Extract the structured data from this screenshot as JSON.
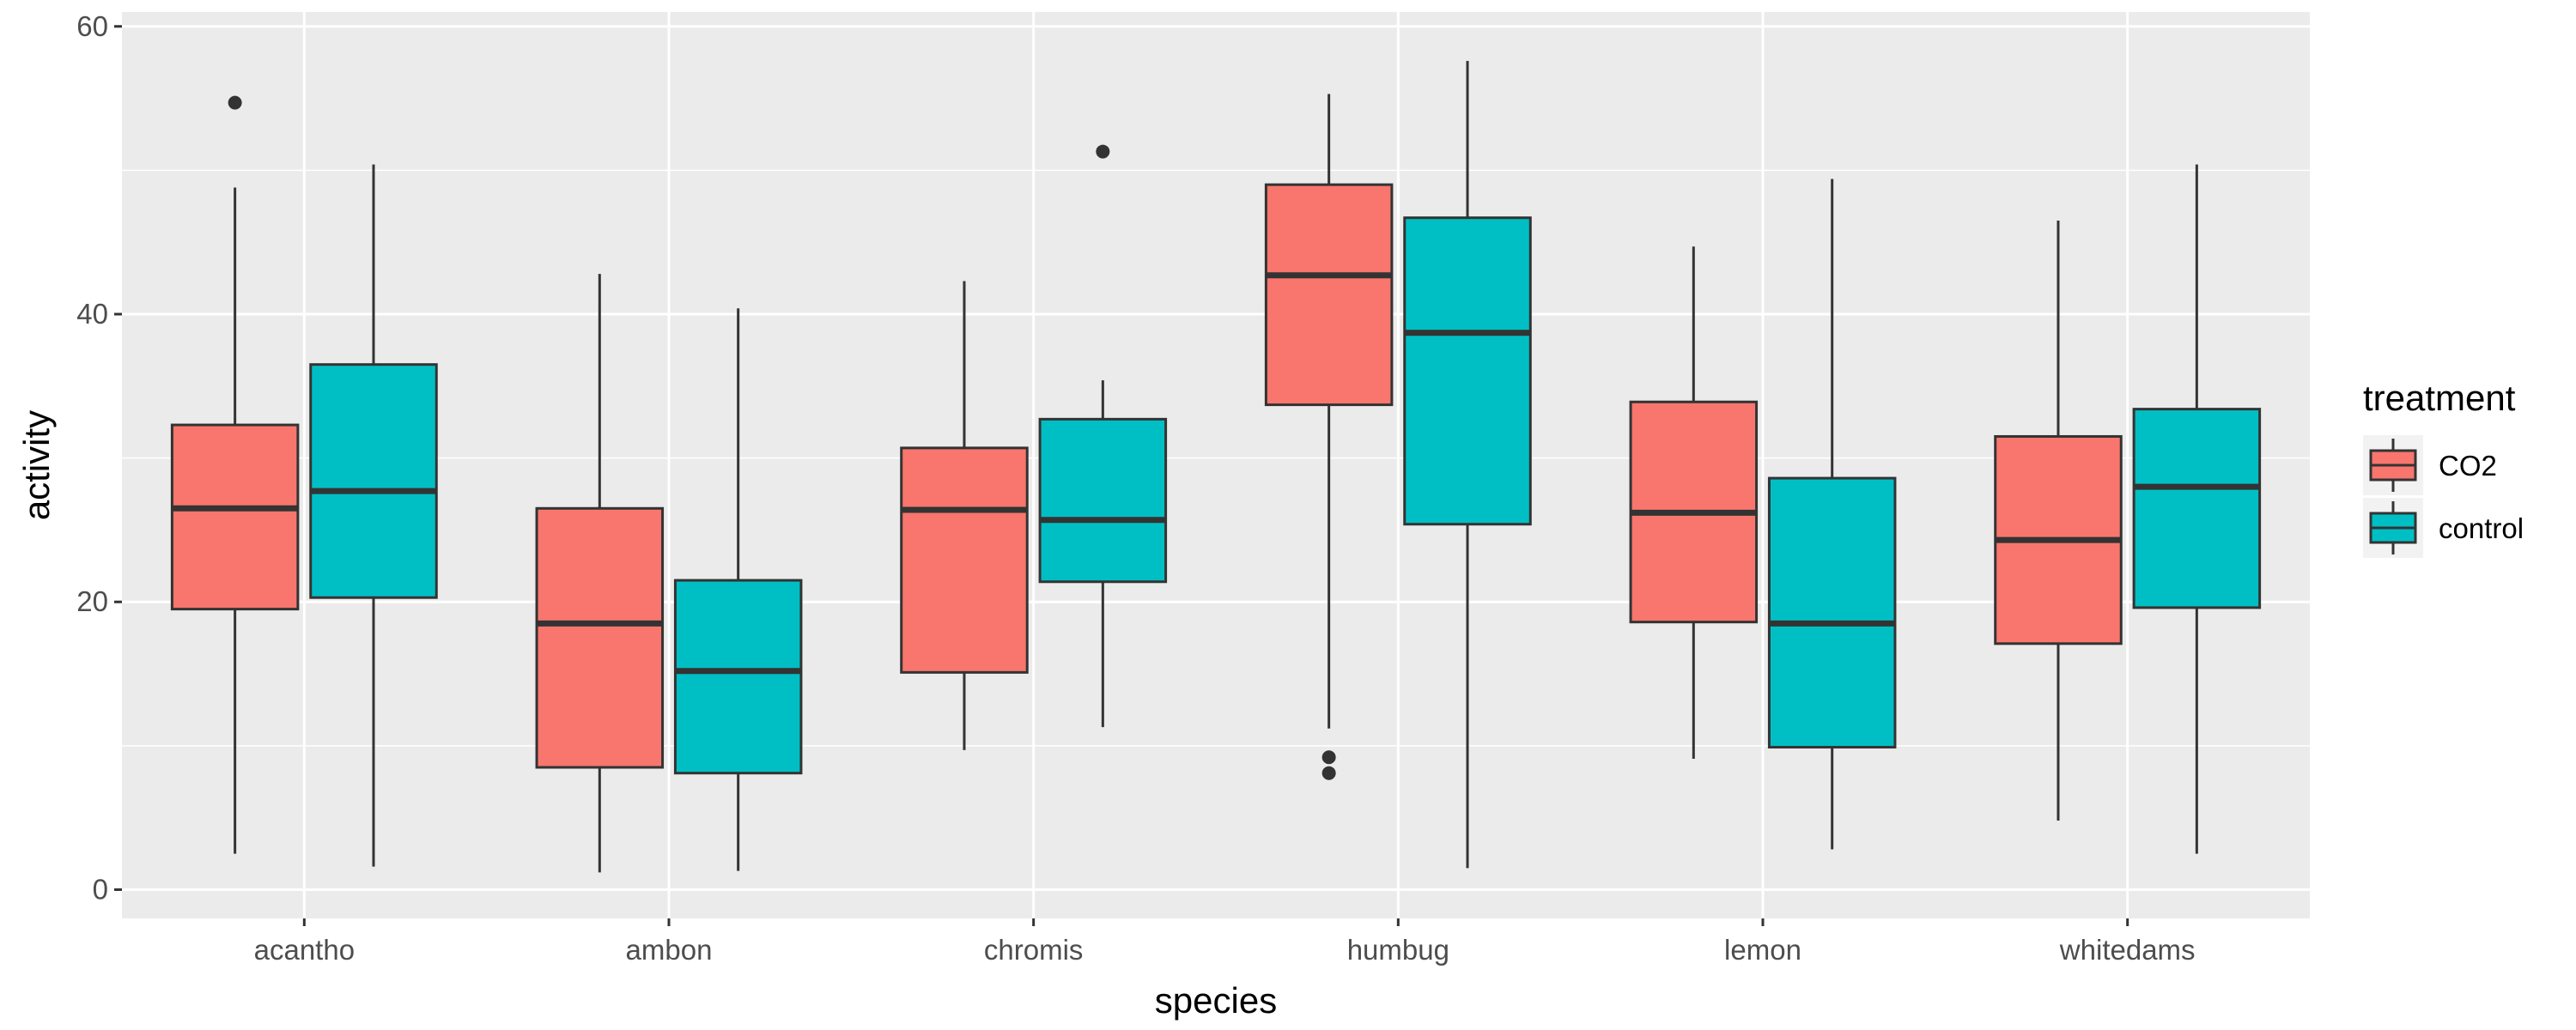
{
  "chart_data": {
    "type": "boxplot",
    "title": "",
    "xlabel": "species",
    "ylabel": "activity",
    "ylim": [
      -2,
      61
    ],
    "yticks": [
      0,
      20,
      40,
      60
    ],
    "grid": true,
    "legend": {
      "title": "treatment",
      "position": "right"
    },
    "categories": [
      "acantho",
      "ambon",
      "chromis",
      "humbug",
      "lemon",
      "whitedams"
    ],
    "series": [
      {
        "name": "CO2",
        "color": "#F8766D",
        "boxes": [
          {
            "whisker_low": 2.5,
            "q1": 19.5,
            "median": 26.5,
            "q3": 32.3,
            "whisker_high": 48.8,
            "outliers": [
              54.7
            ]
          },
          {
            "whisker_low": 1.2,
            "q1": 8.5,
            "median": 18.5,
            "q3": 26.5,
            "whisker_high": 42.8,
            "outliers": []
          },
          {
            "whisker_low": 9.7,
            "q1": 15.1,
            "median": 26.4,
            "q3": 30.7,
            "whisker_high": 42.3,
            "outliers": []
          },
          {
            "whisker_low": 11.2,
            "q1": 33.7,
            "median": 42.7,
            "q3": 49.0,
            "whisker_high": 55.3,
            "outliers": [
              9.2,
              8.1
            ]
          },
          {
            "whisker_low": 9.1,
            "q1": 18.6,
            "median": 26.2,
            "q3": 33.9,
            "whisker_high": 44.7,
            "outliers": []
          },
          {
            "whisker_low": 4.8,
            "q1": 17.1,
            "median": 24.3,
            "q3": 31.5,
            "whisker_high": 46.5,
            "outliers": []
          }
        ]
      },
      {
        "name": "control",
        "color": "#00BFC4",
        "boxes": [
          {
            "whisker_low": 1.6,
            "q1": 20.3,
            "median": 27.7,
            "q3": 36.5,
            "whisker_high": 50.4,
            "outliers": []
          },
          {
            "whisker_low": 1.3,
            "q1": 8.1,
            "median": 15.2,
            "q3": 21.5,
            "whisker_high": 40.4,
            "outliers": []
          },
          {
            "whisker_low": 11.3,
            "q1": 21.4,
            "median": 25.7,
            "q3": 32.7,
            "whisker_high": 35.4,
            "outliers": [
              51.3
            ]
          },
          {
            "whisker_low": 1.5,
            "q1": 25.4,
            "median": 38.7,
            "q3": 46.7,
            "whisker_high": 57.6,
            "outliers": []
          },
          {
            "whisker_low": 2.8,
            "q1": 9.9,
            "median": 18.5,
            "q3": 28.6,
            "whisker_high": 49.4,
            "outliers": []
          },
          {
            "whisker_low": 2.5,
            "q1": 19.6,
            "median": 28.0,
            "q3": 33.4,
            "whisker_high": 50.4,
            "outliers": []
          }
        ]
      }
    ]
  }
}
